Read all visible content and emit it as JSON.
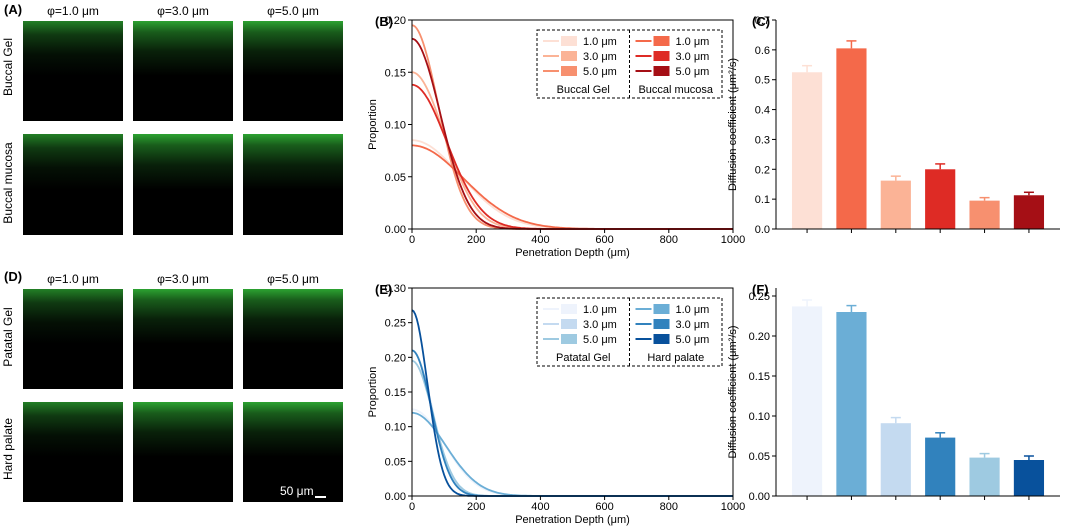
{
  "panels": {
    "A": {
      "label": "(A)",
      "columns": [
        "φ=1.0 μm",
        "φ=3.0 μm",
        "φ=5.0 μm"
      ],
      "rows": [
        "Buccal Gel",
        "Buccal mucosa"
      ]
    },
    "D": {
      "label": "(D)",
      "columns": [
        "φ=1.0 μm",
        "φ=3.0 μm",
        "φ=5.0 μm"
      ],
      "rows": [
        "Patatal Gel",
        "Hard palate"
      ],
      "scale_bar": "50 μm"
    }
  },
  "colors": {
    "image_glow": "#2fae34",
    "red": [
      "#fde0d5",
      "#fbb396",
      "#f7906f",
      "#f4694a",
      "#de2b25",
      "#a50f15"
    ],
    "blue": [
      "#eef3fc",
      "#c4daf0",
      "#9ecae1",
      "#6baed6",
      "#3182bd",
      "#08519c"
    ]
  },
  "chart_data": [
    {
      "id": "B",
      "label": "(B)",
      "type": "line",
      "xlabel": "Penetration Depth (μm)",
      "ylabel": "Proportion",
      "xlim": [
        0,
        1000
      ],
      "ylim": [
        0,
        0.2
      ],
      "xticks": [
        "0",
        "200",
        "400",
        "600",
        "800",
        "1000"
      ],
      "yticks": [
        "0.00",
        "0.05",
        "0.10",
        "0.15",
        "0.20"
      ],
      "legend": {
        "groups": [
          "Buccal Gel",
          "Buccal mucosa"
        ],
        "entries": [
          [
            "1.0 μm",
            "3.0 μm",
            "5.0 μm"
          ],
          [
            "1.0 μm",
            "3.0 μm",
            "5.0 μm"
          ]
        ]
      },
      "series": [
        {
          "name": "Buccal Gel 1.0 μm",
          "color": "#fde0d5",
          "peak": 0.085,
          "sigma": 150
        },
        {
          "name": "Buccal Gel 3.0 μm",
          "color": "#fbb396",
          "peak": 0.15,
          "sigma": 100
        },
        {
          "name": "Buccal Gel 5.0 μm",
          "color": "#f7906f",
          "peak": 0.195,
          "sigma": 82
        },
        {
          "name": "Buccal mucosa 1.0 μm",
          "color": "#f4694a",
          "peak": 0.08,
          "sigma": 160
        },
        {
          "name": "Buccal mucosa 3.0 μm",
          "color": "#de2b25",
          "peak": 0.138,
          "sigma": 108
        },
        {
          "name": "Buccal mucosa 5.0 μm",
          "color": "#a50f15",
          "peak": 0.182,
          "sigma": 88
        }
      ]
    },
    {
      "id": "C",
      "label": "(C)",
      "type": "bar",
      "ylabel": "Diffusion coefficient (μm²/s)",
      "ylim": [
        0,
        0.7
      ],
      "yticks": [
        "0.0",
        "0.1",
        "0.2",
        "0.3",
        "0.4",
        "0.5",
        "0.6",
        "0.7"
      ],
      "values": [
        0.525,
        0.605,
        0.162,
        0.2,
        0.095,
        0.113
      ],
      "errors": [
        0.022,
        0.025,
        0.015,
        0.018,
        0.01,
        0.01
      ],
      "colors": [
        "#fde0d5",
        "#f4694a",
        "#fbb396",
        "#de2b25",
        "#f7906f",
        "#a50f15"
      ]
    },
    {
      "id": "E",
      "label": "(E)",
      "type": "line",
      "xlabel": "Penetration Depth (μm)",
      "ylabel": "Proportion",
      "xlim": [
        0,
        1000
      ],
      "ylim": [
        0,
        0.3
      ],
      "xticks": [
        "0",
        "200",
        "400",
        "600",
        "800",
        "1000"
      ],
      "yticks": [
        "0.00",
        "0.05",
        "0.10",
        "0.15",
        "0.20",
        "0.25",
        "0.30"
      ],
      "legend": {
        "groups": [
          "Patatal Gel",
          "Hard palate"
        ],
        "entries": [
          [
            "1.0 μm",
            "3.0 μm",
            "5.0 μm"
          ],
          [
            "1.0 μm",
            "3.0 μm",
            "5.0 μm"
          ]
        ]
      },
      "series": [
        {
          "name": "Patatal Gel 1.0 μm",
          "color": "#eef3fc",
          "peak": 0.125,
          "sigma": 100
        },
        {
          "name": "Patatal Gel 3.0 μm",
          "color": "#c4daf0",
          "peak": 0.21,
          "sigma": 62
        },
        {
          "name": "Patatal Gel 5.0 μm",
          "color": "#9ecae1",
          "peak": 0.195,
          "sigma": 65
        },
        {
          "name": "Hard palate 1.0 μm",
          "color": "#6baed6",
          "peak": 0.12,
          "sigma": 105
        },
        {
          "name": "Hard palate 3.0 μm",
          "color": "#3182bd",
          "peak": 0.21,
          "sigma": 60
        },
        {
          "name": "Hard palate 5.0 μm",
          "color": "#08519c",
          "peak": 0.268,
          "sigma": 48
        }
      ]
    },
    {
      "id": "F",
      "label": "(F)",
      "type": "bar",
      "ylabel": "Diffusion coefficient (μm²/s)",
      "ylim": [
        0,
        0.26
      ],
      "yticks": [
        "0.00",
        "0.05",
        "0.10",
        "0.15",
        "0.20",
        "0.25"
      ],
      "values": [
        0.237,
        0.23,
        0.091,
        0.073,
        0.048,
        0.045
      ],
      "errors": [
        0.008,
        0.008,
        0.007,
        0.006,
        0.005,
        0.005
      ],
      "colors": [
        "#eef3fc",
        "#6baed6",
        "#c4daf0",
        "#3182bd",
        "#9ecae1",
        "#08519c"
      ]
    }
  ]
}
